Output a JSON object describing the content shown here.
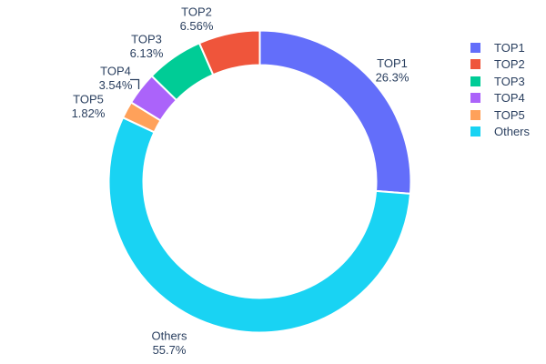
{
  "chart_data": {
    "type": "pie",
    "subtype": "donut",
    "title": "",
    "labels": [
      "TOP1",
      "TOP2",
      "TOP3",
      "TOP4",
      "TOP5",
      "Others"
    ],
    "values_percent": [
      26.3,
      6.56,
      6.13,
      3.54,
      1.82,
      55.7
    ],
    "percent_labels": [
      "26.3%",
      "6.56%",
      "6.13%",
      "3.54%",
      "1.82%",
      "55.7%"
    ],
    "colors": [
      "#636EFA",
      "#EF553B",
      "#00CC96",
      "#AB63FA",
      "#FFA15A",
      "#19D3F3"
    ],
    "hole_ratio": 0.77,
    "start_position": "12-oclock",
    "clockwise_display_order": [
      "TOP1",
      "Others",
      "TOP5",
      "TOP4",
      "TOP3",
      "TOP2"
    ],
    "slice_outline_color": "#ffffff",
    "outside_labels": true,
    "label_line_slices": [
      "TOP4"
    ],
    "text_color": "#2a3f5f",
    "background": "#ffffff",
    "grid": false,
    "legend": {
      "position": "right",
      "entries": [
        "TOP1",
        "TOP2",
        "TOP3",
        "TOP4",
        "TOP5",
        "Others"
      ]
    }
  }
}
